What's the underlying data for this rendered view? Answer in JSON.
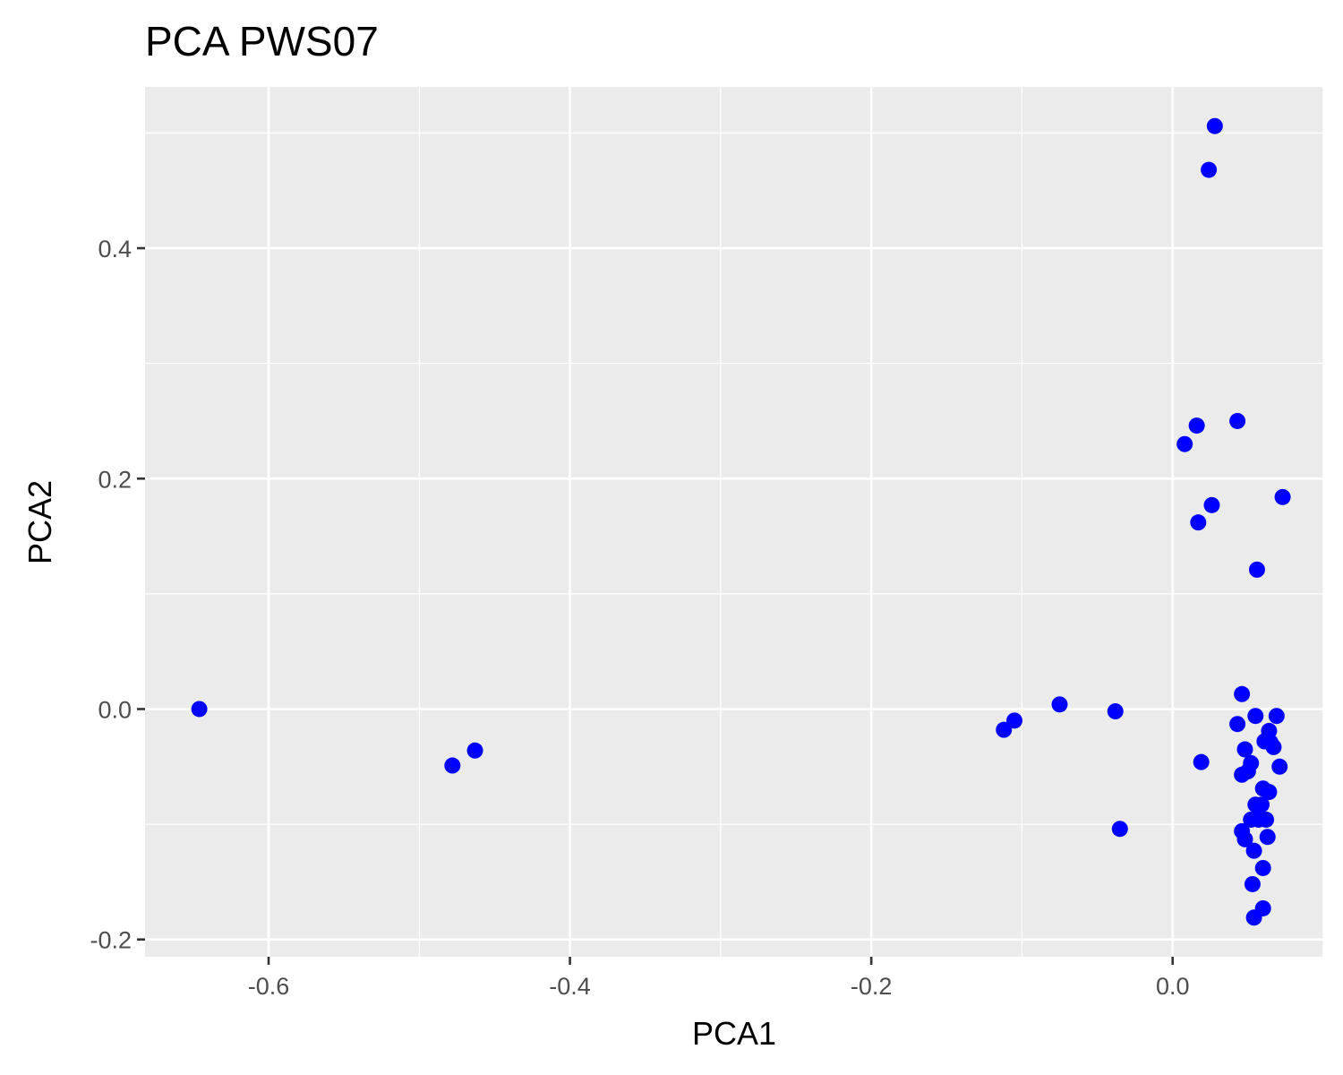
{
  "chart_data": {
    "type": "scatter",
    "title": "PCA PWS07",
    "xlabel": "PCA1",
    "ylabel": "PCA2",
    "xlim": [
      -0.682,
      0.1
    ],
    "ylim": [
      -0.215,
      0.54
    ],
    "x_ticks": [
      -0.6,
      -0.4,
      -0.2,
      0.0
    ],
    "x_tick_labels": [
      "-0.6",
      "-0.4",
      "-0.2",
      "0.0"
    ],
    "y_ticks": [
      -0.2,
      0.0,
      0.2,
      0.4
    ],
    "y_tick_labels": [
      "-0.2",
      "0.0",
      "0.2",
      "0.4"
    ],
    "grid": true,
    "background": "#ebebeb",
    "grid_color": "#ffffff",
    "point_color": "#0000ff",
    "points": [
      {
        "x": 0.028,
        "y": 0.506
      },
      {
        "x": 0.024,
        "y": 0.468
      },
      {
        "x": 0.043,
        "y": 0.25
      },
      {
        "x": 0.016,
        "y": 0.246
      },
      {
        "x": 0.008,
        "y": 0.23
      },
      {
        "x": 0.073,
        "y": 0.184
      },
      {
        "x": 0.026,
        "y": 0.177
      },
      {
        "x": 0.017,
        "y": 0.162
      },
      {
        "x": 0.056,
        "y": 0.121
      },
      {
        "x": -0.646,
        "y": 0.0
      },
      {
        "x": -0.478,
        "y": -0.049
      },
      {
        "x": -0.463,
        "y": -0.036
      },
      {
        "x": -0.112,
        "y": -0.018
      },
      {
        "x": -0.105,
        "y": -0.01
      },
      {
        "x": -0.075,
        "y": 0.004
      },
      {
        "x": -0.038,
        "y": -0.002
      },
      {
        "x": -0.035,
        "y": -0.104
      },
      {
        "x": 0.019,
        "y": -0.046
      },
      {
        "x": 0.046,
        "y": 0.013
      },
      {
        "x": 0.043,
        "y": -0.013
      },
      {
        "x": 0.055,
        "y": -0.006
      },
      {
        "x": 0.069,
        "y": -0.006
      },
      {
        "x": 0.064,
        "y": -0.019
      },
      {
        "x": 0.061,
        "y": -0.028
      },
      {
        "x": 0.065,
        "y": -0.029
      },
      {
        "x": 0.067,
        "y": -0.033
      },
      {
        "x": 0.048,
        "y": -0.035
      },
      {
        "x": 0.052,
        "y": -0.047
      },
      {
        "x": 0.05,
        "y": -0.054
      },
      {
        "x": 0.046,
        "y": -0.057
      },
      {
        "x": 0.071,
        "y": -0.05
      },
      {
        "x": 0.06,
        "y": -0.069
      },
      {
        "x": 0.064,
        "y": -0.072
      },
      {
        "x": 0.055,
        "y": -0.083
      },
      {
        "x": 0.059,
        "y": -0.083
      },
      {
        "x": 0.052,
        "y": -0.096
      },
      {
        "x": 0.057,
        "y": -0.096
      },
      {
        "x": 0.062,
        "y": -0.096
      },
      {
        "x": 0.046,
        "y": -0.106
      },
      {
        "x": 0.048,
        "y": -0.113
      },
      {
        "x": 0.063,
        "y": -0.111
      },
      {
        "x": 0.054,
        "y": -0.123
      },
      {
        "x": 0.06,
        "y": -0.138
      },
      {
        "x": 0.053,
        "y": -0.152
      },
      {
        "x": 0.06,
        "y": -0.173
      },
      {
        "x": 0.054,
        "y": -0.181
      }
    ]
  }
}
